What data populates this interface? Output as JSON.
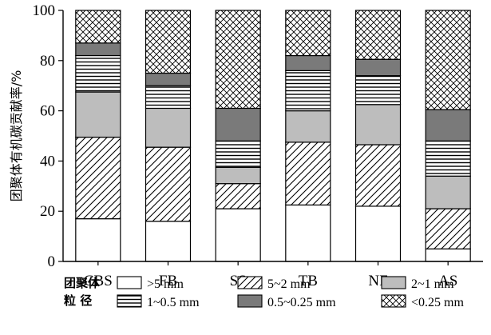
{
  "chart_data": {
    "type": "bar",
    "stacked": true,
    "ylabel": "团聚体有机碳贡献率/%",
    "xlabel": "",
    "ylim": [
      0,
      100
    ],
    "yticks": [
      0,
      20,
      40,
      60,
      80,
      100
    ],
    "categories": [
      "CBS",
      "FB",
      "SS",
      "TB",
      "NF",
      "AS"
    ],
    "legend_title": [
      "团聚体",
      "粒 径"
    ],
    "legend_position": "bottom",
    "series": [
      {
        "name": ">5 mm",
        "fill": "white",
        "values": [
          17,
          16,
          21,
          22.5,
          22,
          5
        ]
      },
      {
        "name": "5~2 mm",
        "fill": "diagonal",
        "values": [
          32.5,
          29.5,
          10,
          25,
          24.5,
          16
        ]
      },
      {
        "name": "2~1 mm",
        "fill": "#bdbdbd",
        "values": [
          18,
          15.5,
          6.5,
          12.5,
          16,
          13
        ]
      },
      {
        "name": "1~0.5 mm",
        "fill": "horizontal",
        "values": [
          14.5,
          9,
          10.5,
          16,
          11.5,
          14
        ]
      },
      {
        "name": "0.5~0.25 mm",
        "fill": "#7a7a7a",
        "values": [
          5,
          5,
          13,
          6,
          6.5,
          12.5
        ]
      },
      {
        "name": "<0.25 mm",
        "fill": "crosshatch",
        "values": [
          13,
          25,
          39,
          18,
          19.5,
          39.5
        ]
      }
    ]
  }
}
